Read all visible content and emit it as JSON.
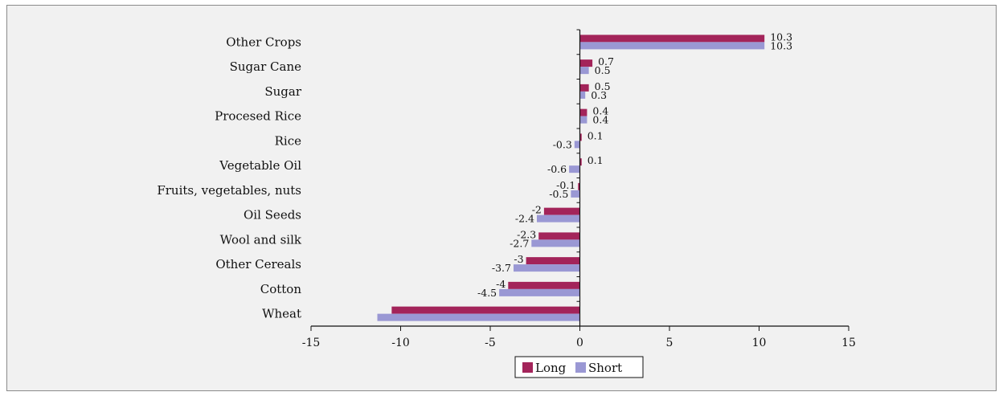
{
  "chart_data": {
    "type": "bar",
    "orientation": "horizontal",
    "categories": [
      "Other Crops",
      "Sugar Cane",
      "Sugar",
      "Procesed Rice",
      "Rice",
      "Vegetable Oil",
      "Fruits, vegetables, nuts",
      "Oil Seeds",
      "Wool and silk",
      "Other Cereals",
      "Cotton",
      "Wheat"
    ],
    "series": [
      {
        "name": "Long",
        "color": "#a3245a",
        "values": [
          10.3,
          0.7,
          0.5,
          0.4,
          0.1,
          0.1,
          -0.1,
          -2,
          -2.3,
          -3,
          -4,
          -10.5
        ]
      },
      {
        "name": "Short",
        "color": "#9a98d4",
        "values": [
          10.3,
          0.5,
          0.3,
          0.4,
          -0.3,
          -0.6,
          -0.5,
          -2.4,
          -2.7,
          -3.7,
          -4.5,
          -11.3
        ]
      }
    ],
    "data_labels": [
      [
        "10.3",
        "0.7",
        "0.5",
        "0.4",
        "0.1",
        "0.1",
        "-0.1",
        "-2",
        "-2.3",
        "-3",
        "-4",
        ""
      ],
      [
        "10.3",
        "0.5",
        "0.3",
        "0.4",
        "-0.3",
        "-0.6",
        "-0.5",
        "-2.4",
        "-2.7",
        "-3.7",
        "-4.5",
        ""
      ]
    ],
    "xlim": [
      -15,
      15
    ],
    "xticks": [
      -15,
      -10,
      -5,
      0,
      5,
      10,
      15
    ],
    "grid": false,
    "legend": "bottom-center",
    "title": "",
    "xlabel": "",
    "ylabel": ""
  }
}
